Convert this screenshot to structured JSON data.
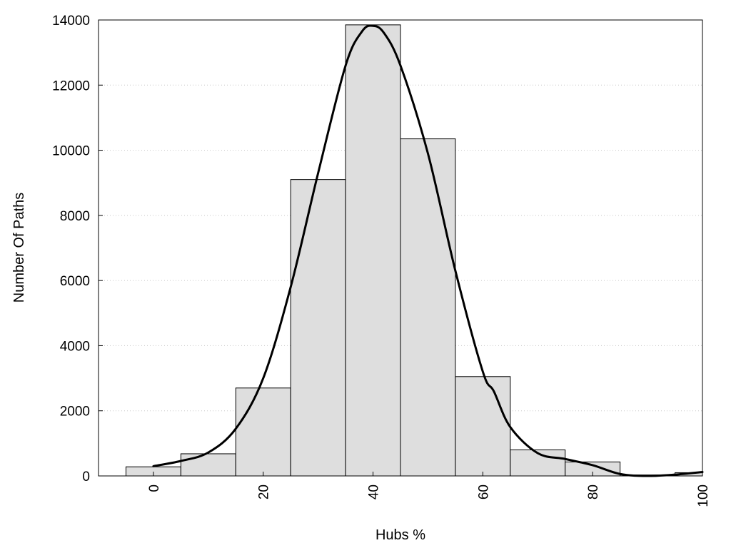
{
  "chart_data": {
    "type": "bar",
    "xlabel": "Hubs %",
    "ylabel": "Number Of Paths",
    "xlim": [
      -10,
      100
    ],
    "ylim": [
      0,
      14000
    ],
    "grid": true,
    "x_ticks": [
      0,
      20,
      40,
      60,
      80,
      100
    ],
    "y_ticks": [
      0,
      2000,
      4000,
      6000,
      8000,
      10000,
      12000,
      14000
    ],
    "bin_width": 10,
    "series": [
      {
        "type": "bar",
        "x": [
          0,
          10,
          20,
          30,
          40,
          50,
          60,
          70,
          80,
          90,
          100
        ],
        "values": [
          280,
          680,
          2700,
          9100,
          13850,
          10350,
          3050,
          800,
          430,
          30,
          100
        ]
      },
      {
        "type": "line",
        "x": [
          0,
          5,
          10,
          15,
          20,
          25,
          30,
          35,
          38,
          40,
          42,
          45,
          50,
          55,
          60,
          62,
          65,
          70,
          75,
          80,
          85,
          90,
          95,
          100
        ],
        "values": [
          300,
          460,
          720,
          1450,
          3000,
          5800,
          9300,
          12600,
          13650,
          13820,
          13600,
          12600,
          9900,
          6300,
          3200,
          2600,
          1500,
          700,
          520,
          330,
          60,
          0,
          40,
          120
        ]
      }
    ],
    "tick_labels_y": [
      "0",
      "2000",
      "4000",
      "6000",
      "8000",
      "10000",
      "12000",
      "14000"
    ],
    "tick_labels_x": [
      "0",
      "20",
      "40",
      "60",
      "80",
      "100"
    ]
  }
}
